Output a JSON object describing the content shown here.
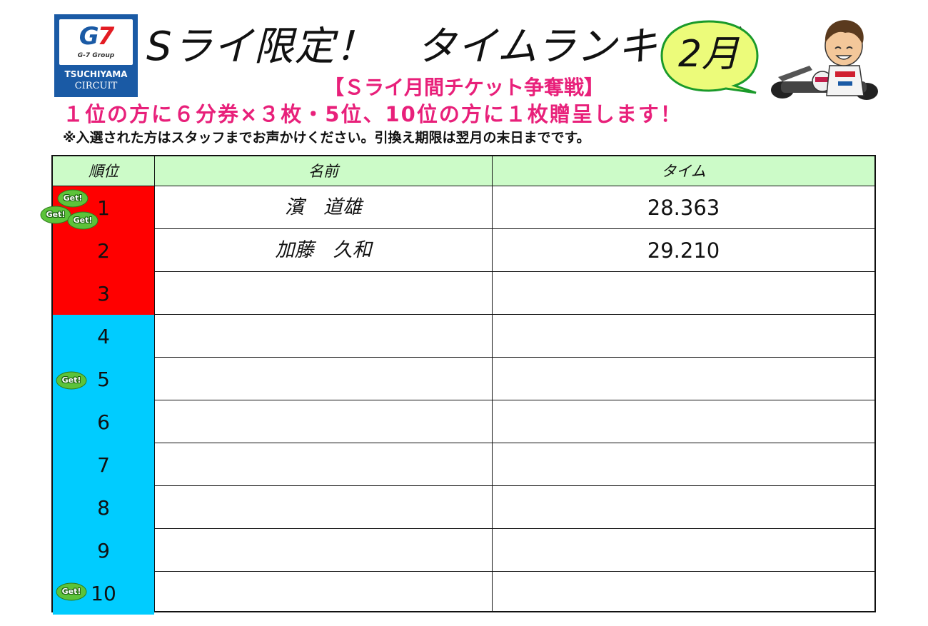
{
  "logo": {
    "brand_g": "G",
    "brand_7": "7",
    "group": "G-7 Group",
    "name": "TSUCHIYAMA",
    "sub": "CIRCUIT"
  },
  "title": "Sライ限定！　タイムランキング",
  "month": "2月",
  "subtitle": "【Ｓライ月間チケット争奪戦】",
  "prize_line": "１位の方に６分券×３枚・5位、10位の方に１枚贈呈します！",
  "note": "※入選された方はスタッフまでお声かけください。引換え期限は翌月の末日までです。",
  "table": {
    "headers": {
      "rank": "順位",
      "name": "名前",
      "time": "タイム"
    },
    "rows": [
      {
        "rank": "1",
        "name": "濱　道雄",
        "time": "28.363",
        "color": "#ff0000"
      },
      {
        "rank": "2",
        "name": "加藤　久和",
        "time": "29.210",
        "color": "#ff0000"
      },
      {
        "rank": "3",
        "name": "",
        "time": "",
        "color": "#ff0000"
      },
      {
        "rank": "4",
        "name": "",
        "time": "",
        "color": "#00ccff"
      },
      {
        "rank": "5",
        "name": "",
        "time": "",
        "color": "#00ccff"
      },
      {
        "rank": "6",
        "name": "",
        "time": "",
        "color": "#00ccff"
      },
      {
        "rank": "7",
        "name": "",
        "time": "",
        "color": "#00ccff"
      },
      {
        "rank": "8",
        "name": "",
        "time": "",
        "color": "#00ccff"
      },
      {
        "rank": "9",
        "name": "",
        "time": "",
        "color": "#00ccff"
      },
      {
        "rank": "10",
        "name": "",
        "time": "",
        "color": "#00ccff"
      }
    ]
  },
  "get_badge": "Get!",
  "colors": {
    "accent_pink": "#e8207a",
    "header_green": "#ccfbc8",
    "top_rank_red": "#ff0000",
    "rank_blue": "#00ccff",
    "logo_blue": "#1a5aa5",
    "bubble_fill": "#ecfb7a",
    "badge_green": "#5cc33a"
  }
}
